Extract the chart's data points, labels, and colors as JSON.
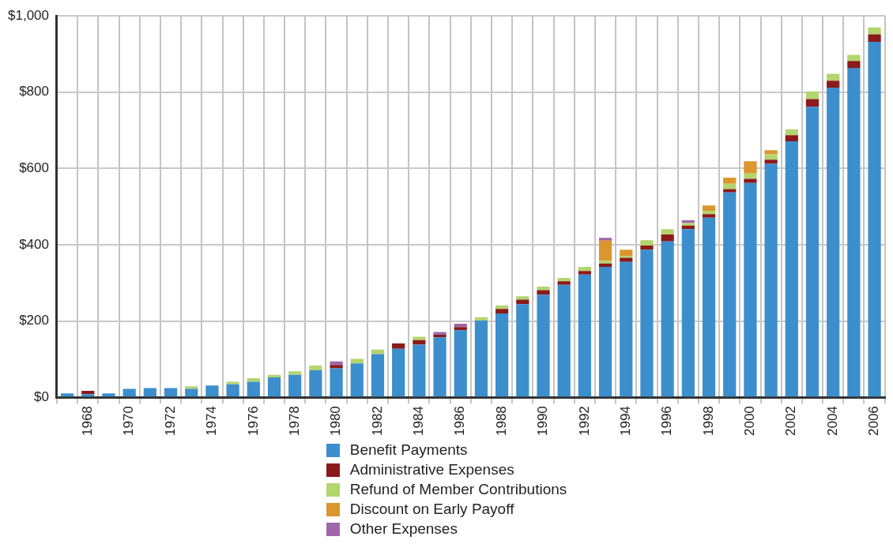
{
  "chart_data": {
    "type": "bar",
    "stacked": true,
    "grid": true,
    "legend": "bottom",
    "categories": [
      null,
      "1968",
      null,
      "1970",
      null,
      "1972",
      null,
      "1974",
      null,
      "1976",
      null,
      "1978",
      null,
      "1980",
      null,
      "1982",
      null,
      "1984",
      null,
      "1986",
      null,
      "1988",
      null,
      "1990",
      null,
      "1992",
      null,
      "1994",
      null,
      "1996",
      null,
      "1998",
      null,
      "2000",
      null,
      "2002",
      null,
      "2004",
      null,
      "2006"
    ],
    "ylim": [
      0,
      1000
    ],
    "yticks": [
      {
        "value": 0,
        "label": "$0"
      },
      {
        "value": 200,
        "label": "$200"
      },
      {
        "value": 400,
        "label": "$400"
      },
      {
        "value": 600,
        "label": "$600"
      },
      {
        "value": 800,
        "label": "$800"
      },
      {
        "value": 1000,
        "label": "$1,000"
      }
    ],
    "series": [
      {
        "name": "Benefit Payments",
        "color": "#3d8ecd",
        "values": [
          10,
          8,
          10,
          22,
          24,
          24,
          22,
          31,
          34,
          41,
          52,
          59,
          71,
          76,
          89,
          113,
          127,
          138,
          157,
          176,
          201,
          220,
          244,
          269,
          295,
          322,
          342,
          355,
          387,
          409,
          441,
          471,
          537,
          562,
          612,
          671,
          762,
          812,
          864,
          932
        ]
      },
      {
        "name": "Administrative Expenses",
        "color": "#8b1a1a",
        "values": [
          null,
          9,
          null,
          null,
          null,
          null,
          null,
          null,
          null,
          null,
          null,
          null,
          null,
          9,
          null,
          null,
          14,
          12,
          7,
          8,
          null,
          12,
          12,
          12,
          9,
          9,
          9,
          11,
          11,
          18,
          9,
          9,
          9,
          11,
          11,
          16,
          20,
          18,
          18,
          20
        ]
      },
      {
        "name": "Refund of Member Contributions",
        "color": "#b3d56e",
        "values": [
          null,
          null,
          null,
          null,
          null,
          null,
          7,
          null,
          7,
          9,
          7,
          9,
          12,
          null,
          12,
          12,
          null,
          9,
          null,
          null,
          9,
          9,
          9,
          9,
          9,
          11,
          7,
          5,
          14,
          14,
          7,
          9,
          14,
          14,
          14,
          16,
          20,
          18,
          16,
          18
        ]
      },
      {
        "name": "Discount on Early Payoff",
        "color": "#dc962e",
        "values": [
          null,
          null,
          null,
          null,
          null,
          null,
          null,
          null,
          null,
          null,
          null,
          null,
          null,
          null,
          null,
          null,
          null,
          null,
          null,
          null,
          null,
          null,
          null,
          null,
          null,
          null,
          53,
          16,
          null,
          null,
          null,
          14,
          16,
          32,
          11,
          null,
          null,
          null,
          null,
          null
        ]
      },
      {
        "name": "Other Expenses",
        "color": "#a066aa",
        "values": [
          null,
          null,
          null,
          null,
          null,
          null,
          null,
          null,
          null,
          null,
          null,
          null,
          null,
          9,
          null,
          null,
          null,
          null,
          7,
          9,
          null,
          null,
          null,
          null,
          null,
          null,
          7,
          null,
          null,
          null,
          7,
          null,
          null,
          null,
          null,
          null,
          null,
          null,
          null,
          null
        ]
      }
    ]
  }
}
